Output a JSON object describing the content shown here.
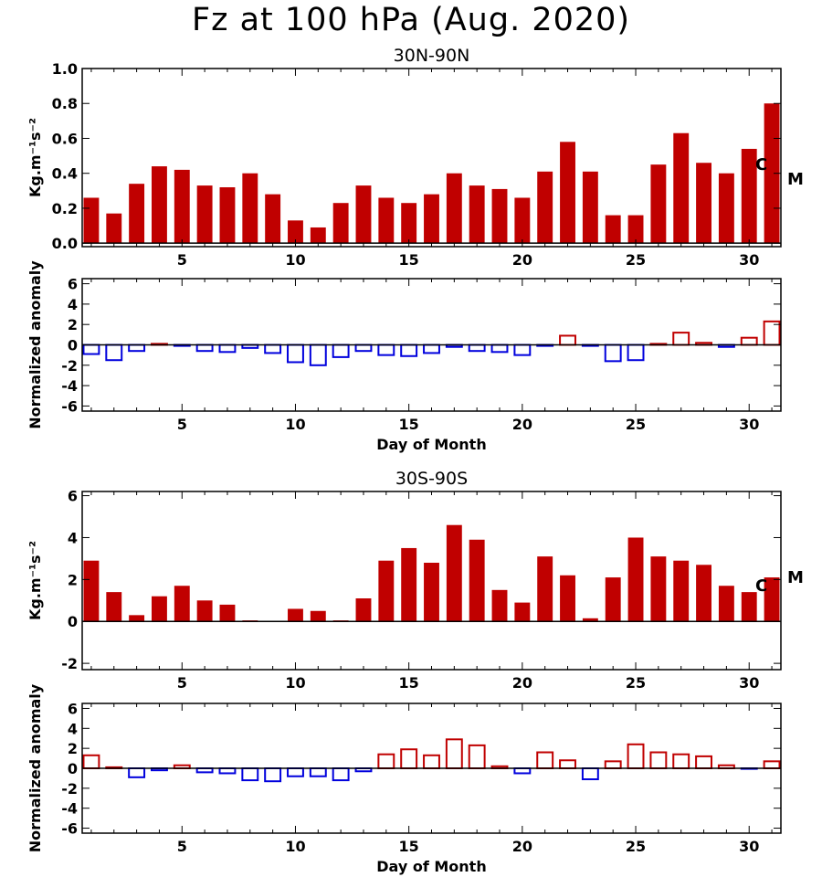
{
  "title": "Fz at 100 hPa (Aug. 2020)",
  "colors": {
    "positive": "#c00000",
    "negative": "#0000dd",
    "axis": "#000000"
  },
  "chart_data": [
    {
      "type": "bar",
      "subtitle": "30N-90N",
      "ylabel": "Kg.m⁻¹s⁻²",
      "xlabel": "",
      "x": [
        1,
        2,
        3,
        4,
        5,
        6,
        7,
        8,
        9,
        10,
        11,
        12,
        13,
        14,
        15,
        16,
        17,
        18,
        19,
        20,
        21,
        22,
        23,
        24,
        25,
        26,
        27,
        28,
        29,
        30,
        31
      ],
      "values": [
        0.26,
        0.17,
        0.34,
        0.44,
        0.42,
        0.33,
        0.32,
        0.4,
        0.28,
        0.13,
        0.09,
        0.23,
        0.33,
        0.26,
        0.23,
        0.28,
        0.4,
        0.33,
        0.31,
        0.26,
        0.41,
        0.58,
        0.41,
        0.16,
        0.16,
        0.45,
        0.63,
        0.46,
        0.4,
        0.54,
        0.8
      ],
      "xlim": [
        0.6,
        31.4
      ],
      "ylim": [
        -0.02,
        1.0
      ],
      "xticks": [
        "5",
        "10",
        "15",
        "20",
        "25",
        "30"
      ],
      "yticks": [
        "0.0",
        "0.2",
        "0.4",
        "0.6",
        "0.8",
        "1.0"
      ],
      "style": "filled",
      "markers": {
        "climatology": "C",
        "model": "M"
      }
    },
    {
      "type": "bar",
      "subtitle": "",
      "ylabel": "Normalized anomaly",
      "xlabel": "Day of Month",
      "x": [
        1,
        2,
        3,
        4,
        5,
        6,
        7,
        8,
        9,
        10,
        11,
        12,
        13,
        14,
        15,
        16,
        17,
        18,
        19,
        20,
        21,
        22,
        23,
        24,
        25,
        26,
        27,
        28,
        29,
        30,
        31
      ],
      "values": [
        -0.9,
        -1.5,
        -0.6,
        0.1,
        -0.1,
        -0.6,
        -0.7,
        -0.3,
        -0.8,
        -1.7,
        -2.0,
        -1.2,
        -0.6,
        -1.0,
        -1.1,
        -0.8,
        -0.2,
        -0.6,
        -0.7,
        -1.0,
        -0.1,
        0.9,
        -0.1,
        -1.6,
        -1.5,
        0.1,
        1.2,
        0.2,
        -0.2,
        0.7,
        2.3
      ],
      "xlim": [
        0.6,
        31.4
      ],
      "ylim": [
        -6.5,
        6.5
      ],
      "xticks": [
        "5",
        "10",
        "15",
        "20",
        "25",
        "30"
      ],
      "yticks": [
        "-6",
        "-4",
        "-2",
        "0",
        "2",
        "4",
        "6"
      ],
      "style": "outline"
    },
    {
      "type": "bar",
      "subtitle": "30S-90S",
      "ylabel": "Kg.m⁻¹s⁻²",
      "xlabel": "",
      "x": [
        1,
        2,
        3,
        4,
        5,
        6,
        7,
        8,
        9,
        10,
        11,
        12,
        13,
        14,
        15,
        16,
        17,
        18,
        19,
        20,
        21,
        22,
        23,
        24,
        25,
        26,
        27,
        28,
        29,
        30,
        31
      ],
      "values": [
        2.9,
        1.4,
        0.3,
        1.2,
        1.7,
        1.0,
        0.8,
        0.05,
        0.0,
        0.6,
        0.5,
        0.05,
        1.1,
        2.9,
        3.5,
        2.8,
        4.6,
        3.9,
        1.5,
        0.9,
        3.1,
        2.2,
        0.15,
        2.1,
        4.0,
        3.1,
        2.9,
        2.7,
        1.7,
        1.4,
        2.1
      ],
      "xlim": [
        0.6,
        31.4
      ],
      "ylim": [
        -2.3,
        6.2
      ],
      "xticks": [
        "5",
        "10",
        "15",
        "20",
        "25",
        "30"
      ],
      "yticks": [
        "-2",
        "0",
        "2",
        "4",
        "6"
      ],
      "style": "filled",
      "markers": {
        "climatology": "C",
        "model": "M"
      }
    },
    {
      "type": "bar",
      "subtitle": "",
      "ylabel": "Normalized anomaly",
      "xlabel": "Day of Month",
      "x": [
        1,
        2,
        3,
        4,
        5,
        6,
        7,
        8,
        9,
        10,
        11,
        12,
        13,
        14,
        15,
        16,
        17,
        18,
        19,
        20,
        21,
        22,
        23,
        24,
        25,
        26,
        27,
        28,
        29,
        30,
        31
      ],
      "values": [
        1.3,
        0.1,
        -0.9,
        -0.2,
        0.3,
        -0.4,
        -0.5,
        -1.2,
        -1.3,
        -0.8,
        -0.8,
        -1.2,
        -0.3,
        1.4,
        1.9,
        1.3,
        2.9,
        2.3,
        0.2,
        -0.5,
        1.6,
        0.8,
        -1.1,
        0.7,
        2.4,
        1.6,
        1.4,
        1.2,
        0.3,
        -0.05,
        0.7
      ],
      "xlim": [
        0.6,
        31.4
      ],
      "ylim": [
        -6.5,
        6.5
      ],
      "xticks": [
        "5",
        "10",
        "15",
        "20",
        "25",
        "30"
      ],
      "yticks": [
        "-6",
        "-4",
        "-2",
        "0",
        "2",
        "4",
        "6"
      ],
      "style": "outline"
    }
  ]
}
